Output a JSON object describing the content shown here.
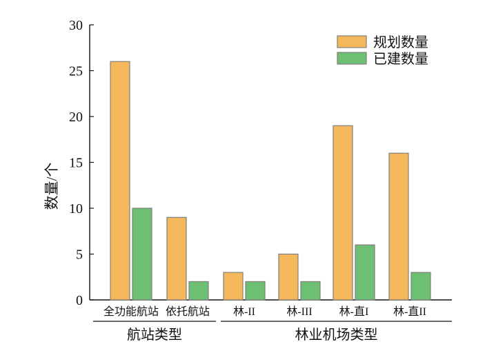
{
  "chart_data": {
    "type": "bar",
    "ylabel": "数量/个",
    "ylim": [
      0,
      30
    ],
    "yticks": [
      0,
      5,
      10,
      15,
      20,
      25,
      30
    ],
    "categories": [
      "全功能航站",
      "依托航站",
      "林-II",
      "林-III",
      "林-直I",
      "林-直II"
    ],
    "groups": [
      {
        "label": "航站类型",
        "categories": [
          "全功能航站",
          "依托航站"
        ]
      },
      {
        "label": "林业机场类型",
        "categories": [
          "林-II",
          "林-III",
          "林-直I",
          "林-直II"
        ]
      }
    ],
    "series": [
      {
        "name": "规划数量",
        "color": "#F5B75C",
        "values": [
          26,
          9,
          3,
          5,
          19,
          16
        ]
      },
      {
        "name": "已建数量",
        "color": "#6DBF73",
        "values": [
          10,
          2,
          2,
          2,
          6,
          3
        ]
      }
    ],
    "legend_position": "top-right",
    "grid": false
  }
}
